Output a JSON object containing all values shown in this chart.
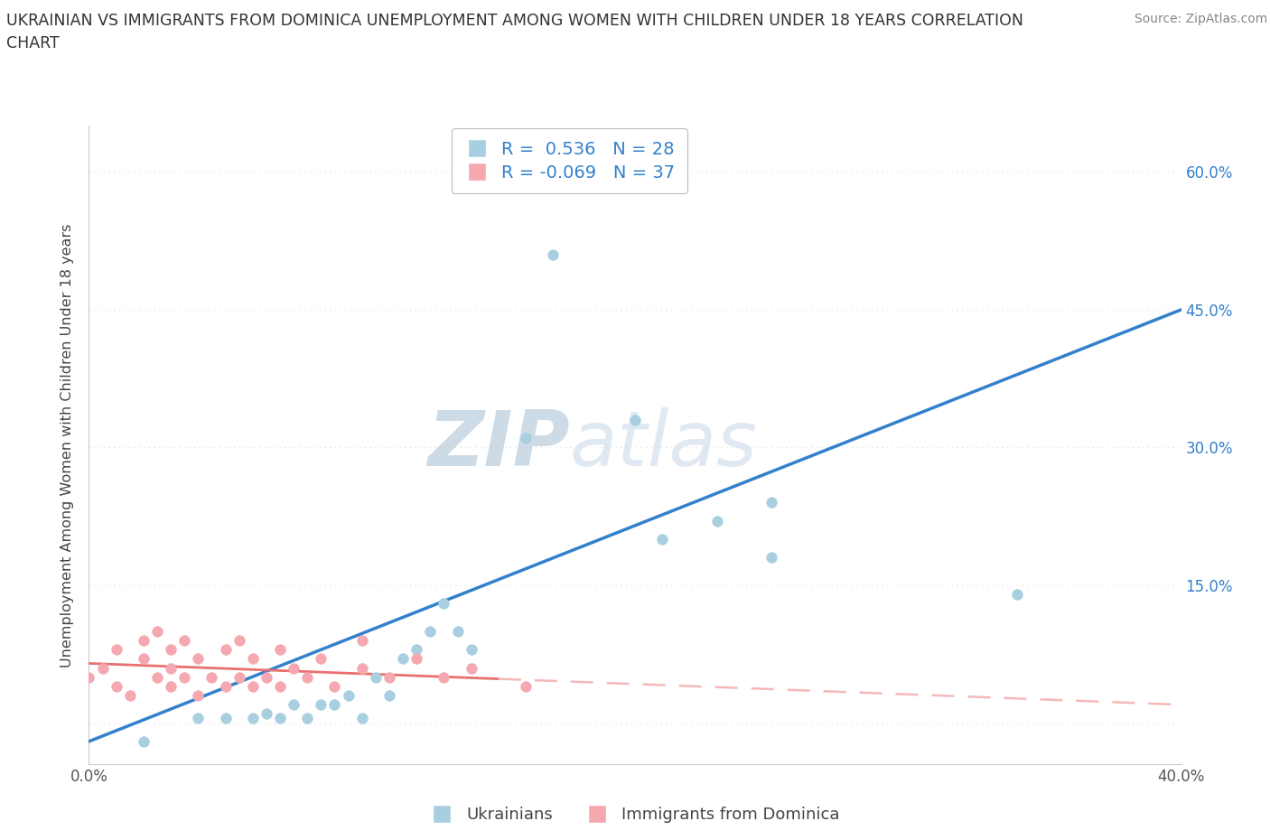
{
  "title_line1": "UKRAINIAN VS IMMIGRANTS FROM DOMINICA UNEMPLOYMENT AMONG WOMEN WITH CHILDREN UNDER 18 YEARS CORRELATION",
  "title_line2": "CHART",
  "source_text": "Source: ZipAtlas.com",
  "ylabel": "Unemployment Among Women with Children Under 18 years",
  "legend_ukrainians": "Ukrainians",
  "legend_dominica": "Immigrants from Dominica",
  "watermark_zip": "ZIP",
  "watermark_atlas": "atlas",
  "r_ukrainian": 0.536,
  "n_ukrainian": 28,
  "r_dominica": -0.069,
  "n_dominica": 37,
  "xlim": [
    0.0,
    0.4
  ],
  "ylim": [
    -0.045,
    0.65
  ],
  "x_ticks": [
    0.0,
    0.1,
    0.2,
    0.3,
    0.4
  ],
  "y_ticks": [
    0.0,
    0.15,
    0.3,
    0.45,
    0.6
  ],
  "y_tick_labels_right": [
    "",
    "15.0%",
    "30.0%",
    "45.0%",
    "60.0%"
  ],
  "ukrainian_color": "#a8cfe0",
  "dominica_color": "#f5a8b0",
  "trend_ukrainian_color": "#3380cc",
  "trend_dominica_color": "#e87070",
  "trend_dominica_dash_color": "#f5b8b8",
  "background_color": "#ffffff",
  "grid_color": "#dddddd",
  "ukrainian_scatter_x": [
    0.02,
    0.04,
    0.05,
    0.06,
    0.065,
    0.07,
    0.075,
    0.08,
    0.085,
    0.09,
    0.095,
    0.1,
    0.105,
    0.11,
    0.115,
    0.12,
    0.125,
    0.13,
    0.135,
    0.14,
    0.16,
    0.2,
    0.21,
    0.23,
    0.25,
    0.17,
    0.34,
    0.25
  ],
  "ukrainian_scatter_y": [
    -0.02,
    0.005,
    0.005,
    0.005,
    0.01,
    0.005,
    0.02,
    0.005,
    0.02,
    0.02,
    0.03,
    0.005,
    0.05,
    0.03,
    0.07,
    0.08,
    0.1,
    0.13,
    0.1,
    0.08,
    0.31,
    0.33,
    0.2,
    0.22,
    0.24,
    0.51,
    0.14,
    0.18
  ],
  "dominica_scatter_x": [
    0.0,
    0.005,
    0.01,
    0.01,
    0.015,
    0.02,
    0.02,
    0.025,
    0.025,
    0.03,
    0.03,
    0.03,
    0.035,
    0.035,
    0.04,
    0.04,
    0.045,
    0.05,
    0.05,
    0.055,
    0.055,
    0.06,
    0.06,
    0.065,
    0.07,
    0.07,
    0.075,
    0.08,
    0.085,
    0.09,
    0.1,
    0.1,
    0.11,
    0.12,
    0.13,
    0.14,
    0.16
  ],
  "dominica_scatter_y": [
    0.05,
    0.06,
    0.04,
    0.08,
    0.03,
    0.07,
    0.09,
    0.05,
    0.1,
    0.04,
    0.06,
    0.08,
    0.05,
    0.09,
    0.03,
    0.07,
    0.05,
    0.04,
    0.08,
    0.05,
    0.09,
    0.04,
    0.07,
    0.05,
    0.04,
    0.08,
    0.06,
    0.05,
    0.07,
    0.04,
    0.06,
    0.09,
    0.05,
    0.07,
    0.05,
    0.06,
    0.04
  ],
  "trend_u_x0": 0.0,
  "trend_u_y0": -0.02,
  "trend_u_x1": 0.4,
  "trend_u_y1": 0.45,
  "trend_d_x0": 0.0,
  "trend_d_y0": 0.065,
  "trend_d_x1": 0.4,
  "trend_d_y1": 0.02
}
